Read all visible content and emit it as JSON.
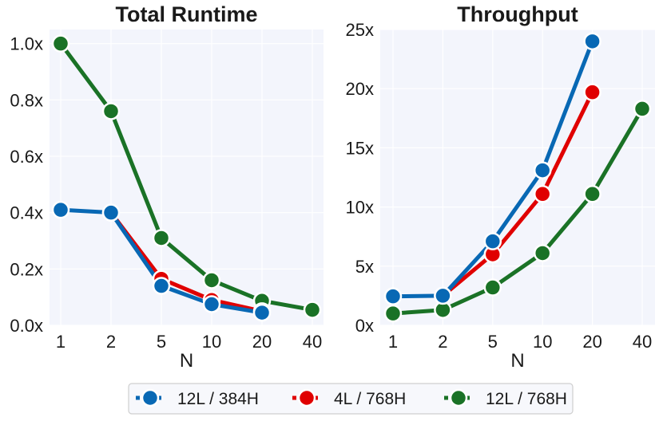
{
  "colors": {
    "background": "#f3f5fc",
    "grid": "#ffffff",
    "series": [
      "#0868b4",
      "#e00000",
      "#1a7226"
    ]
  },
  "chart_data": [
    {
      "type": "line",
      "title": "Total Runtime",
      "xlabel": "N",
      "ylabel": "",
      "categories": [
        "1",
        "2",
        "5",
        "10",
        "20",
        "40"
      ],
      "ylim": [
        0,
        1.05
      ],
      "yticks": [
        0.0,
        0.2,
        0.4,
        0.6,
        0.8,
        1.0
      ],
      "ytick_labels": [
        "0.0x",
        "0.2x",
        "0.4x",
        "0.6x",
        "0.8x",
        "1.0x"
      ],
      "series": [
        {
          "name": "12L / 384H",
          "values": [
            0.41,
            0.4,
            0.14,
            0.075,
            0.045,
            null
          ]
        },
        {
          "name": "4L / 768H",
          "values": [
            null,
            0.4,
            0.165,
            0.09,
            0.05,
            null
          ]
        },
        {
          "name": "12L / 768H",
          "values": [
            1.0,
            0.76,
            0.31,
            0.16,
            0.087,
            0.055
          ]
        }
      ]
    },
    {
      "type": "line",
      "title": "Throughput",
      "xlabel": "N",
      "ylabel": "",
      "categories": [
        "1",
        "2",
        "5",
        "10",
        "20",
        "40"
      ],
      "ylim": [
        0,
        25
      ],
      "yticks": [
        0,
        5,
        10,
        15,
        20,
        25
      ],
      "ytick_labels": [
        "0x",
        "5x",
        "10x",
        "15x",
        "20x",
        "25x"
      ],
      "series": [
        {
          "name": "12L / 384H",
          "values": [
            2.45,
            2.5,
            7.1,
            13.1,
            24.0,
            null
          ]
        },
        {
          "name": "4L / 768H",
          "values": [
            null,
            2.5,
            6.0,
            11.1,
            19.7,
            null
          ]
        },
        {
          "name": "12L / 768H",
          "values": [
            1.0,
            1.3,
            3.2,
            6.1,
            11.1,
            18.3
          ]
        }
      ]
    }
  ],
  "legend": {
    "placement": "bottom-center",
    "entries": [
      "12L / 384H",
      "4L / 768H",
      "12L / 768H"
    ]
  }
}
